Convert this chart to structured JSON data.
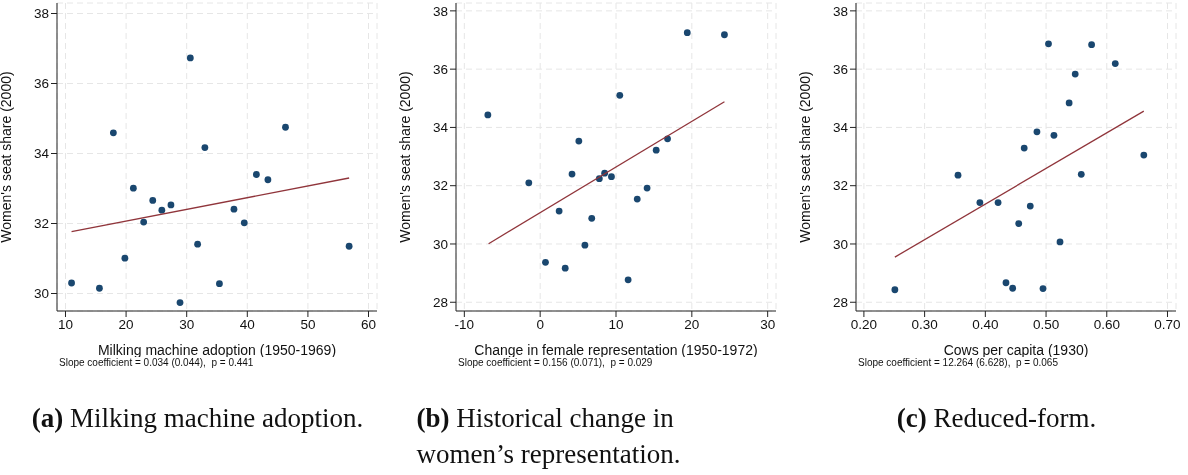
{
  "chart_data": [
    {
      "type": "scatter",
      "xlabel": "Milking machine adoption (1950-1969)",
      "ylabel": "Women's seat share (2000)",
      "xlim": [
        8.6,
        61.4
      ],
      "xticks": [
        10,
        20,
        30,
        40,
        50,
        60
      ],
      "ylim": [
        29.5,
        38.3
      ],
      "yticks": [
        30,
        32,
        34,
        36,
        38
      ],
      "grid": true,
      "series": [
        {
          "marker": "circle",
          "color": "#1a476f",
          "x": [
            11.0,
            15.6,
            17.9,
            19.8,
            21.2,
            22.9,
            24.4,
            25.9,
            27.4,
            28.9,
            30.6,
            31.8,
            33.0,
            35.4,
            37.8,
            39.5,
            41.5,
            43.4,
            46.3,
            56.8
          ],
          "values": [
            30.3,
            30.15,
            34.59,
            31.01,
            33.01,
            32.04,
            32.66,
            32.38,
            32.53,
            29.74,
            36.73,
            31.41,
            34.17,
            30.28,
            32.41,
            32.02,
            33.4,
            33.25,
            34.75,
            31.35
          ]
        },
        {
          "type": "line",
          "marker": "none",
          "color": "#90353b",
          "x": [
            11.0,
            56.8
          ],
          "values": [
            31.77,
            33.3
          ]
        }
      ],
      "annotations": [
        "Slope coefficient = 0.034 (0.044),  p = 0.441",
        "(a) Milking machine adoption."
      ]
    },
    {
      "type": "scatter",
      "xlabel": "Change in female representation (1950-1972)",
      "ylabel": "Women's seat share (2000)",
      "xlim": [
        -11.1,
        31.1
      ],
      "xticks": [
        -10,
        0,
        10,
        20,
        30
      ],
      "ylim": [
        27.7,
        38.27
      ],
      "yticks": [
        28,
        30,
        32,
        34,
        36,
        38
      ],
      "grid": true,
      "series": [
        {
          "marker": "circle",
          "color": "#1a476f",
          "x": [
            -6.9,
            -1.5,
            0.7,
            2.5,
            3.3,
            4.2,
            5.1,
            5.9,
            6.8,
            7.8,
            8.5,
            9.4,
            10.5,
            11.6,
            12.8,
            14.1,
            15.3,
            16.8,
            19.4,
            24.3
          ],
          "values": [
            34.43,
            32.1,
            29.37,
            31.13,
            29.17,
            32.4,
            33.53,
            29.96,
            30.88,
            32.24,
            32.43,
            32.31,
            35.1,
            28.77,
            31.54,
            31.92,
            33.22,
            33.61,
            37.25,
            37.18
          ]
        },
        {
          "type": "line",
          "marker": "none",
          "color": "#90353b",
          "x": [
            -6.8,
            24.3
          ],
          "values": [
            30.01,
            34.88
          ]
        }
      ],
      "annotations": [
        "Slope coefficient = 0.156 (0.071),  p = 0.029",
        "(b) Historical change in women’s representation."
      ]
    },
    {
      "type": "scatter",
      "xlabel": "Cows per capita (1930)",
      "ylabel": "Women's seat share (2000)",
      "xlim": [
        0.187,
        0.714
      ],
      "xticks": [
        {
          "value": 0.2,
          "label": "0.20"
        },
        {
          "value": 0.3,
          "label": "0.30"
        },
        {
          "value": 0.4,
          "label": "0.40"
        },
        {
          "value": 0.5,
          "label": "0.50"
        },
        {
          "value": 0.6,
          "label": "0.60"
        },
        {
          "value": 0.7,
          "label": "0.70"
        }
      ],
      "ylim": [
        27.7,
        38.27
      ],
      "yticks": [
        28,
        30,
        32,
        34,
        36,
        38
      ],
      "grid": true,
      "series": [
        {
          "marker": "circle",
          "color": "#1a476f",
          "x": [
            0.251,
            0.355,
            0.391,
            0.421,
            0.434,
            0.445,
            0.455,
            0.464,
            0.474,
            0.485,
            0.495,
            0.504,
            0.513,
            0.523,
            0.538,
            0.548,
            0.558,
            0.575,
            0.614,
            0.661
          ],
          "values": [
            28.43,
            32.36,
            31.42,
            31.42,
            28.67,
            28.48,
            30.7,
            33.29,
            31.3,
            33.85,
            28.47,
            36.87,
            33.73,
            30.07,
            34.84,
            35.83,
            32.39,
            36.84,
            36.19,
            33.05
          ]
        },
        {
          "type": "line",
          "marker": "none",
          "color": "#90353b",
          "x": [
            0.251,
            0.661
          ],
          "values": [
            29.55,
            34.56
          ]
        }
      ],
      "annotations": [
        "Slope coefficient = 12.264 (6.628),  p = 0.065",
        "(c) Reduced-form."
      ]
    }
  ]
}
